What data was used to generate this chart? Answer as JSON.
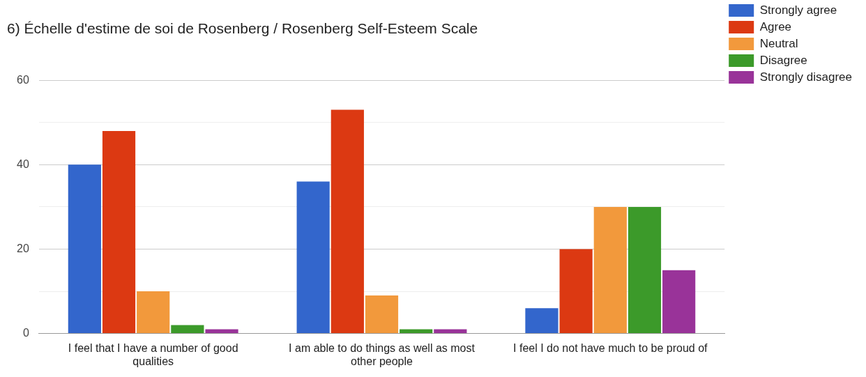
{
  "chart_data": {
    "type": "bar",
    "title": "6) Échelle d'estime de soi de Rosenberg / Rosenberg Self-Esteem Scale",
    "categories": [
      "I feel that I have a number of good qualities",
      "I am able to do things as well as most other people",
      "I feel I do not have much to be proud of"
    ],
    "series": [
      {
        "name": "Strongly agree",
        "color": "#3366cc",
        "values": [
          40,
          36,
          6
        ]
      },
      {
        "name": "Agree",
        "color": "#dc3912",
        "values": [
          48,
          53,
          20
        ]
      },
      {
        "name": "Neutral",
        "color": "#f2993c",
        "values": [
          10,
          9,
          30
        ]
      },
      {
        "name": "Disagree",
        "color": "#3c9a2a",
        "values": [
          2,
          1,
          30
        ]
      },
      {
        "name": "Strongly disagree",
        "color": "#993399",
        "values": [
          1,
          1,
          15
        ]
      }
    ],
    "ylim": [
      0,
      60
    ],
    "yticks": [
      0,
      {
        "value": 10,
        "label": null
      },
      20,
      {
        "value": 30,
        "label": null
      },
      40,
      {
        "value": 50,
        "label": null
      },
      60
    ],
    "grid": "y",
    "legend": "top right"
  }
}
